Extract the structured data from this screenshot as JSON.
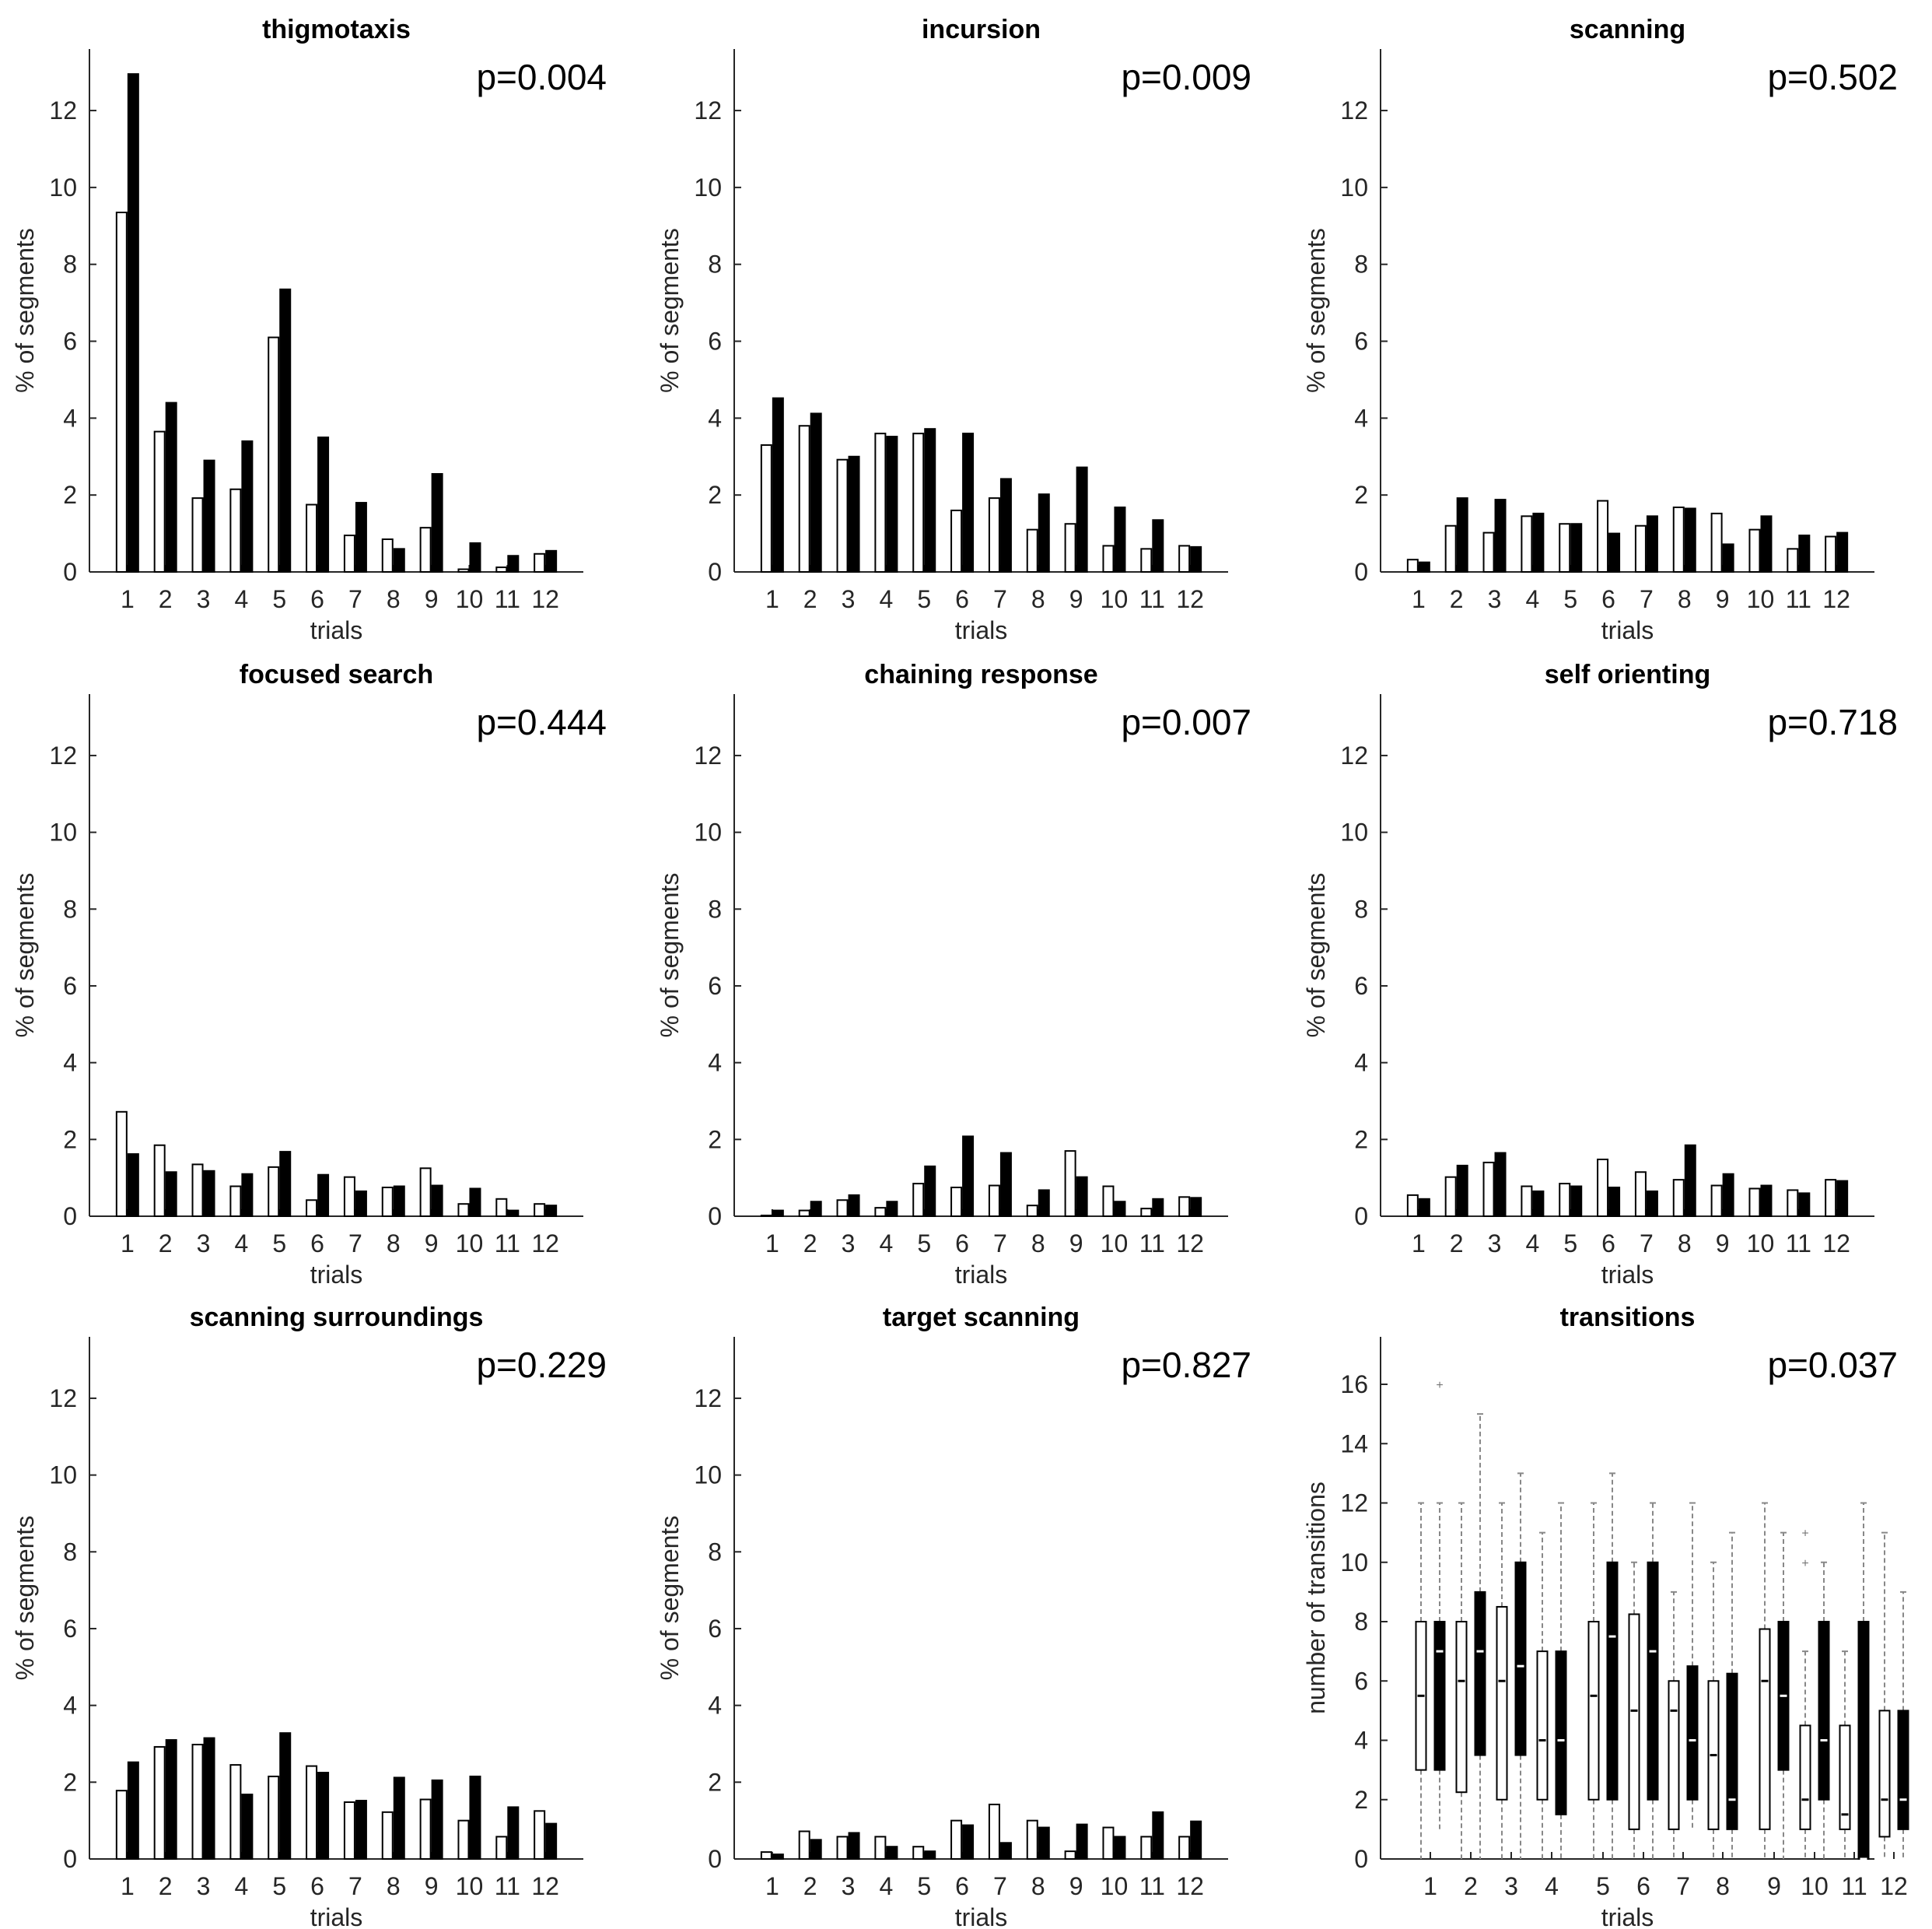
{
  "chart_data": [
    {
      "type": "bar",
      "title": "thigmotaxis",
      "p_value": "p=0.004",
      "xlabel": "trials",
      "ylabel": "% of segments",
      "ylim": [
        0,
        13.6
      ],
      "yticks": [
        0,
        2,
        4,
        6,
        8,
        10,
        12
      ],
      "categories": [
        "1",
        "2",
        "3",
        "4",
        "5",
        "6",
        "7",
        "8",
        "9",
        "10",
        "11",
        "12"
      ],
      "series": [
        {
          "fill": "#ffffff",
          "values": [
            9.35,
            3.65,
            1.92,
            2.15,
            6.1,
            1.75,
            0.95,
            0.85,
            1.15,
            0.07,
            0.12,
            0.47
          ]
        },
        {
          "fill": "#000000",
          "values": [
            12.95,
            4.4,
            2.9,
            3.4,
            7.35,
            3.5,
            1.8,
            0.6,
            2.55,
            0.75,
            0.42,
            0.55
          ]
        }
      ]
    },
    {
      "type": "bar",
      "title": "incursion",
      "p_value": "p=0.009",
      "xlabel": "trials",
      "ylabel": "% of segments",
      "ylim": [
        0,
        13.6
      ],
      "yticks": [
        0,
        2,
        4,
        6,
        8,
        10,
        12
      ],
      "categories": [
        "1",
        "2",
        "3",
        "4",
        "5",
        "6",
        "7",
        "8",
        "9",
        "10",
        "11",
        "12"
      ],
      "series": [
        {
          "fill": "#ffffff",
          "values": [
            3.3,
            3.8,
            2.92,
            3.6,
            3.6,
            1.6,
            1.92,
            1.1,
            1.25,
            0.68,
            0.6,
            0.68
          ]
        },
        {
          "fill": "#000000",
          "values": [
            4.52,
            4.12,
            3.0,
            3.52,
            3.72,
            3.6,
            2.42,
            2.02,
            2.72,
            1.68,
            1.35,
            0.65
          ]
        }
      ]
    },
    {
      "type": "bar",
      "title": "scanning",
      "p_value": "p=0.502",
      "xlabel": "trials",
      "ylabel": "% of segments",
      "ylim": [
        0,
        13.6
      ],
      "yticks": [
        0,
        2,
        4,
        6,
        8,
        10,
        12
      ],
      "categories": [
        "1",
        "2",
        "3",
        "4",
        "5",
        "6",
        "7",
        "8",
        "9",
        "10",
        "11",
        "12"
      ],
      "series": [
        {
          "fill": "#ffffff",
          "values": [
            0.32,
            1.2,
            1.02,
            1.45,
            1.25,
            1.85,
            1.2,
            1.68,
            1.52,
            1.1,
            0.6,
            0.92
          ]
        },
        {
          "fill": "#000000",
          "values": [
            0.25,
            1.92,
            1.88,
            1.52,
            1.25,
            1.0,
            1.45,
            1.65,
            0.72,
            1.45,
            0.95,
            1.02
          ]
        }
      ]
    },
    {
      "type": "bar",
      "title": "focused search",
      "p_value": "p=0.444",
      "xlabel": "trials",
      "ylabel": "% of segments",
      "ylim": [
        0,
        13.6
      ],
      "yticks": [
        0,
        2,
        4,
        6,
        8,
        10,
        12
      ],
      "categories": [
        "1",
        "2",
        "3",
        "4",
        "5",
        "6",
        "7",
        "8",
        "9",
        "10",
        "11",
        "12"
      ],
      "series": [
        {
          "fill": "#ffffff",
          "values": [
            2.72,
            1.85,
            1.35,
            0.78,
            1.28,
            0.42,
            1.02,
            0.75,
            1.25,
            0.32,
            0.45,
            0.32
          ]
        },
        {
          "fill": "#000000",
          "values": [
            1.62,
            1.15,
            1.18,
            1.1,
            1.68,
            1.08,
            0.65,
            0.78,
            0.8,
            0.72,
            0.15,
            0.28
          ]
        }
      ]
    },
    {
      "type": "bar",
      "title": "chaining response",
      "p_value": "p=0.007",
      "xlabel": "trials",
      "ylabel": "% of segments",
      "ylim": [
        0,
        13.6
      ],
      "yticks": [
        0,
        2,
        4,
        6,
        8,
        10,
        12
      ],
      "categories": [
        "1",
        "2",
        "3",
        "4",
        "5",
        "6",
        "7",
        "8",
        "9",
        "10",
        "11",
        "12"
      ],
      "series": [
        {
          "fill": "#ffffff",
          "values": [
            0.02,
            0.15,
            0.42,
            0.22,
            0.85,
            0.75,
            0.8,
            0.28,
            1.7,
            0.78,
            0.2,
            0.5
          ]
        },
        {
          "fill": "#000000",
          "values": [
            0.15,
            0.38,
            0.55,
            0.38,
            1.3,
            2.08,
            1.65,
            0.68,
            1.02,
            0.38,
            0.45,
            0.48
          ]
        }
      ]
    },
    {
      "type": "bar",
      "title": "self orienting",
      "p_value": "p=0.718",
      "xlabel": "trials",
      "ylabel": "% of segments",
      "ylim": [
        0,
        13.6
      ],
      "yticks": [
        0,
        2,
        4,
        6,
        8,
        10,
        12
      ],
      "categories": [
        "1",
        "2",
        "3",
        "4",
        "5",
        "6",
        "7",
        "8",
        "9",
        "10",
        "11",
        "12"
      ],
      "series": [
        {
          "fill": "#ffffff",
          "values": [
            0.55,
            1.02,
            1.4,
            0.78,
            0.85,
            1.48,
            1.15,
            0.95,
            0.8,
            0.72,
            0.68,
            0.95
          ]
        },
        {
          "fill": "#000000",
          "values": [
            0.45,
            1.32,
            1.65,
            0.65,
            0.78,
            0.75,
            0.65,
            1.85,
            1.1,
            0.8,
            0.6,
            0.92
          ]
        }
      ]
    },
    {
      "type": "bar",
      "title": "scanning surroundings",
      "p_value": "p=0.229",
      "xlabel": "trials",
      "ylabel": "% of segments",
      "ylim": [
        0,
        13.6
      ],
      "yticks": [
        0,
        2,
        4,
        6,
        8,
        10,
        12
      ],
      "categories": [
        "1",
        "2",
        "3",
        "4",
        "5",
        "6",
        "7",
        "8",
        "9",
        "10",
        "11",
        "12"
      ],
      "series": [
        {
          "fill": "#ffffff",
          "values": [
            1.78,
            2.92,
            2.98,
            2.45,
            2.15,
            2.42,
            1.48,
            1.22,
            1.55,
            1.0,
            0.58,
            1.25
          ]
        },
        {
          "fill": "#000000",
          "values": [
            2.52,
            3.1,
            3.15,
            1.68,
            3.28,
            2.25,
            1.52,
            2.12,
            2.05,
            2.15,
            1.35,
            0.92
          ]
        }
      ]
    },
    {
      "type": "bar",
      "title": "target scanning",
      "p_value": "p=0.827",
      "xlabel": "trials",
      "ylabel": "% of segments",
      "ylim": [
        0,
        13.6
      ],
      "yticks": [
        0,
        2,
        4,
        6,
        8,
        10,
        12
      ],
      "categories": [
        "1",
        "2",
        "3",
        "4",
        "5",
        "6",
        "7",
        "8",
        "9",
        "10",
        "11",
        "12"
      ],
      "series": [
        {
          "fill": "#ffffff",
          "values": [
            0.18,
            0.72,
            0.58,
            0.58,
            0.32,
            1.0,
            1.42,
            1.0,
            0.2,
            0.82,
            0.58,
            0.58
          ]
        },
        {
          "fill": "#000000",
          "values": [
            0.12,
            0.5,
            0.68,
            0.32,
            0.2,
            0.88,
            0.42,
            0.82,
            0.9,
            0.58,
            1.22,
            0.98
          ]
        }
      ]
    },
    {
      "type": "box",
      "title": "transitions",
      "p_value": "p=0.037",
      "xlabel": "trials",
      "ylabel": "number of transitions",
      "ylim": [
        0,
        17.6
      ],
      "yticks": [
        0,
        2,
        4,
        6,
        8,
        10,
        12,
        14,
        16
      ],
      "categories": [
        "1",
        "2",
        "3",
        "4",
        "5",
        "6",
        "7",
        "8",
        "9",
        "10",
        "11",
        "12"
      ],
      "series": [
        {
          "fill": "#ffffff",
          "boxes": [
            {
              "q1": 3,
              "median": 5.5,
              "q3": 8,
              "whisker_low": 0,
              "whisker_high": 12,
              "outliers": []
            },
            {
              "q1": 2.25,
              "median": 6,
              "q3": 8,
              "whisker_low": 0,
              "whisker_high": 12,
              "outliers": []
            },
            {
              "q1": 2,
              "median": 6,
              "q3": 8.5,
              "whisker_low": 0,
              "whisker_high": 12,
              "outliers": []
            },
            {
              "q1": 2,
              "median": 4,
              "q3": 7,
              "whisker_low": 0,
              "whisker_high": 11,
              "outliers": []
            },
            {
              "q1": 2,
              "median": 5.5,
              "q3": 8,
              "whisker_low": 0,
              "whisker_high": 12,
              "outliers": []
            },
            {
              "q1": 1,
              "median": 5,
              "q3": 8.25,
              "whisker_low": 0,
              "whisker_high": 10,
              "outliers": []
            },
            {
              "q1": 1,
              "median": 5,
              "q3": 6,
              "whisker_low": 0,
              "whisker_high": 9,
              "outliers": []
            },
            {
              "q1": 1,
              "median": 3.5,
              "q3": 6,
              "whisker_low": 0,
              "whisker_high": 10,
              "outliers": []
            },
            {
              "q1": 1,
              "median": 6,
              "q3": 7.75,
              "whisker_low": 0,
              "whisker_high": 12,
              "outliers": []
            },
            {
              "q1": 1,
              "median": 2,
              "q3": 4.5,
              "whisker_low": 0,
              "whisker_high": 7,
              "outliers": [
                10,
                11
              ]
            },
            {
              "q1": 1,
              "median": 1.5,
              "q3": 4.5,
              "whisker_low": 0,
              "whisker_high": 7,
              "outliers": []
            },
            {
              "q1": 0.75,
              "median": 2,
              "q3": 5,
              "whisker_low": 0,
              "whisker_high": 11,
              "outliers": []
            }
          ]
        },
        {
          "fill": "#000000",
          "boxes": [
            {
              "q1": 3,
              "median": 7,
              "q3": 8,
              "whisker_low": 1,
              "whisker_high": 12,
              "outliers": [
                16
              ]
            },
            {
              "q1": 3.5,
              "median": 7,
              "q3": 9,
              "whisker_low": 0,
              "whisker_high": 15,
              "outliers": []
            },
            {
              "q1": 3.5,
              "median": 6.5,
              "q3": 10,
              "whisker_low": 0,
              "whisker_high": 13,
              "outliers": []
            },
            {
              "q1": 1.5,
              "median": 4,
              "q3": 7,
              "whisker_low": 0,
              "whisker_high": 12,
              "outliers": []
            },
            {
              "q1": 2,
              "median": 7.5,
              "q3": 10,
              "whisker_low": 0,
              "whisker_high": 13,
              "outliers": []
            },
            {
              "q1": 2,
              "median": 7,
              "q3": 10,
              "whisker_low": 0,
              "whisker_high": 12,
              "outliers": []
            },
            {
              "q1": 2,
              "median": 4,
              "q3": 6.5,
              "whisker_low": 1,
              "whisker_high": 12,
              "outliers": []
            },
            {
              "q1": 1,
              "median": 2,
              "q3": 6.25,
              "whisker_low": 0,
              "whisker_high": 11,
              "outliers": []
            },
            {
              "q1": 3,
              "median": 5.5,
              "q3": 8,
              "whisker_low": 0,
              "whisker_high": 11,
              "outliers": []
            },
            {
              "q1": 2,
              "median": 4,
              "q3": 8,
              "whisker_low": 0,
              "whisker_high": 10,
              "outliers": []
            },
            {
              "q1": 0,
              "median": 0,
              "q3": 8,
              "whisker_low": 0,
              "whisker_high": 12,
              "outliers": []
            },
            {
              "q1": 1,
              "median": 2,
              "q3": 5,
              "whisker_low": 0,
              "whisker_high": 9,
              "outliers": []
            }
          ]
        }
      ]
    }
  ]
}
